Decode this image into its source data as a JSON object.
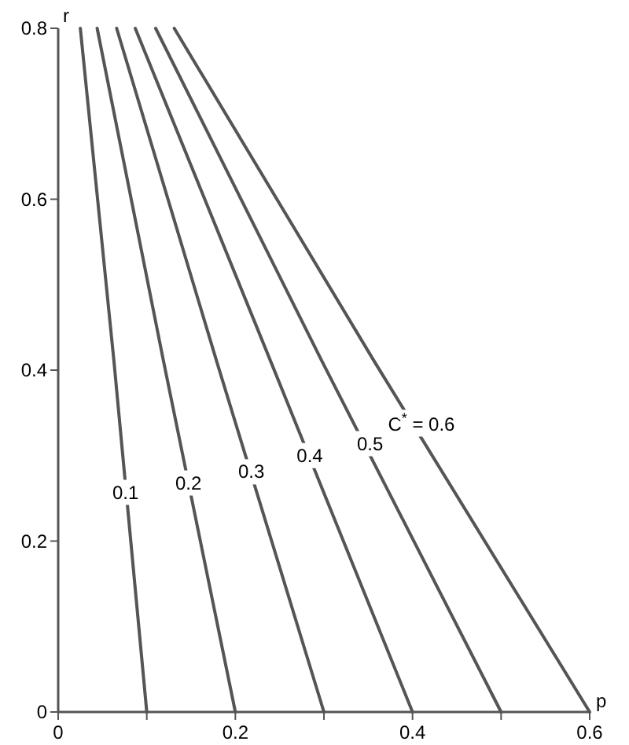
{
  "chart_data": {
    "type": "line",
    "xlabel": "p",
    "ylabel": "r",
    "xlim": [
      0,
      0.6
    ],
    "ylim": [
      0,
      0.8
    ],
    "xticks": [
      0,
      {
        "value": 0.1,
        "label": null
      },
      0.2,
      {
        "value": 0.3,
        "label": null
      },
      0.4,
      {
        "value": 0.5,
        "label": null
      },
      0.6
    ],
    "yticks": [
      0,
      0.2,
      0.4,
      0.6,
      0.8
    ],
    "series": [
      {
        "color": "#555555",
        "x": [
          0.025,
          0.063,
          0.1
        ],
        "values": [
          0.8,
          0.41,
          0
        ]
      },
      {
        "color": "#555555",
        "x": [
          0.044,
          0.119,
          0.2
        ],
        "values": [
          0.8,
          0.41,
          0
        ]
      },
      {
        "color": "#555555",
        "x": [
          0.066,
          0.179,
          0.3
        ],
        "values": [
          0.8,
          0.41,
          0
        ]
      },
      {
        "color": "#555555",
        "x": [
          0.087,
          0.24,
          0.4
        ],
        "values": [
          0.8,
          0.41,
          0
        ]
      },
      {
        "color": "#555555",
        "x": [
          0.11,
          0.298,
          0.5
        ],
        "values": [
          0.8,
          0.41,
          0
        ]
      },
      {
        "color": "#555555",
        "x": [
          0.131,
          0.357,
          0.6
        ],
        "values": [
          0.8,
          0.41,
          0
        ]
      }
    ],
    "annotations": [
      {
        "text": "0.1",
        "x": 0.076,
        "y": 0.257
      },
      {
        "text": "0.2",
        "x": 0.147,
        "y": 0.268
      },
      {
        "text": "0.3",
        "x": 0.218,
        "y": 0.281
      },
      {
        "text": "0.4",
        "x": 0.284,
        "y": 0.3
      },
      {
        "text": "0.5",
        "x": 0.352,
        "y": 0.314
      },
      {
        "text": "C$^{*}$ = 0.6",
        "x": 0.41,
        "y": 0.337
      }
    ],
    "grid": false,
    "marker": "none",
    "line_style": "solid"
  }
}
